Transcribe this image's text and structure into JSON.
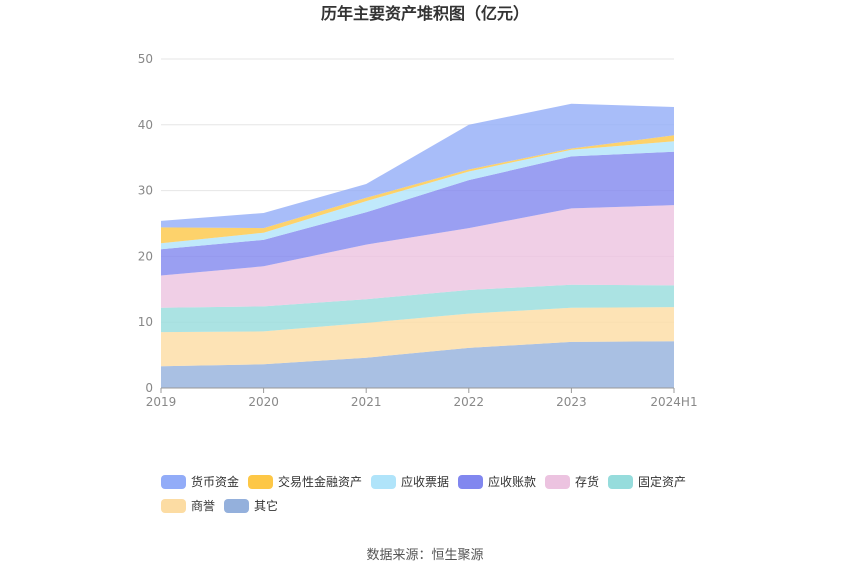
{
  "chart_data": {
    "type": "area",
    "stacked": true,
    "title": "历年主要资产堆积图（亿元）",
    "categories": [
      "2019",
      "2020",
      "2021",
      "2022",
      "2023",
      "2024H1"
    ],
    "ylim": [
      0,
      50
    ],
    "yticks": [
      0,
      10,
      20,
      30,
      40,
      50
    ],
    "grid": true,
    "legend_position": "bottom",
    "series": [
      {
        "name": "其它",
        "color": "#94b0dc",
        "values": [
          3.3,
          3.6,
          4.6,
          6.1,
          7.0,
          7.1
        ]
      },
      {
        "name": "商誉",
        "color": "#fcdca3",
        "values": [
          5.2,
          5.0,
          5.3,
          5.2,
          5.2,
          5.2
        ]
      },
      {
        "name": "固定资产",
        "color": "#96dcdc",
        "values": [
          3.7,
          3.8,
          3.6,
          3.6,
          3.5,
          3.3
        ]
      },
      {
        "name": "存货",
        "color": "#ecc3e0",
        "values": [
          4.9,
          6.1,
          8.3,
          9.4,
          11.6,
          12.2
        ]
      },
      {
        "name": "应收账款",
        "color": "#8187ef",
        "values": [
          4.0,
          4.0,
          4.9,
          7.3,
          7.9,
          8.1
        ]
      },
      {
        "name": "应收票据",
        "color": "#b0e4fa",
        "values": [
          0.9,
          1.1,
          1.7,
          1.3,
          1.0,
          1.6
        ]
      },
      {
        "name": "交易性金融资产",
        "color": "#fdc746",
        "values": [
          2.4,
          0.7,
          0.5,
          0.3,
          0.2,
          0.9
        ]
      },
      {
        "name": "货币资金",
        "color": "#92acf8",
        "values": [
          1.0,
          2.3,
          2.1,
          6.8,
          6.8,
          4.3
        ]
      }
    ],
    "legend_order": [
      "货币资金",
      "交易性金融资产",
      "应收票据",
      "应收账款",
      "存货",
      "固定资产",
      "商誉",
      "其它"
    ],
    "source": "数据来源：恒生聚源"
  }
}
